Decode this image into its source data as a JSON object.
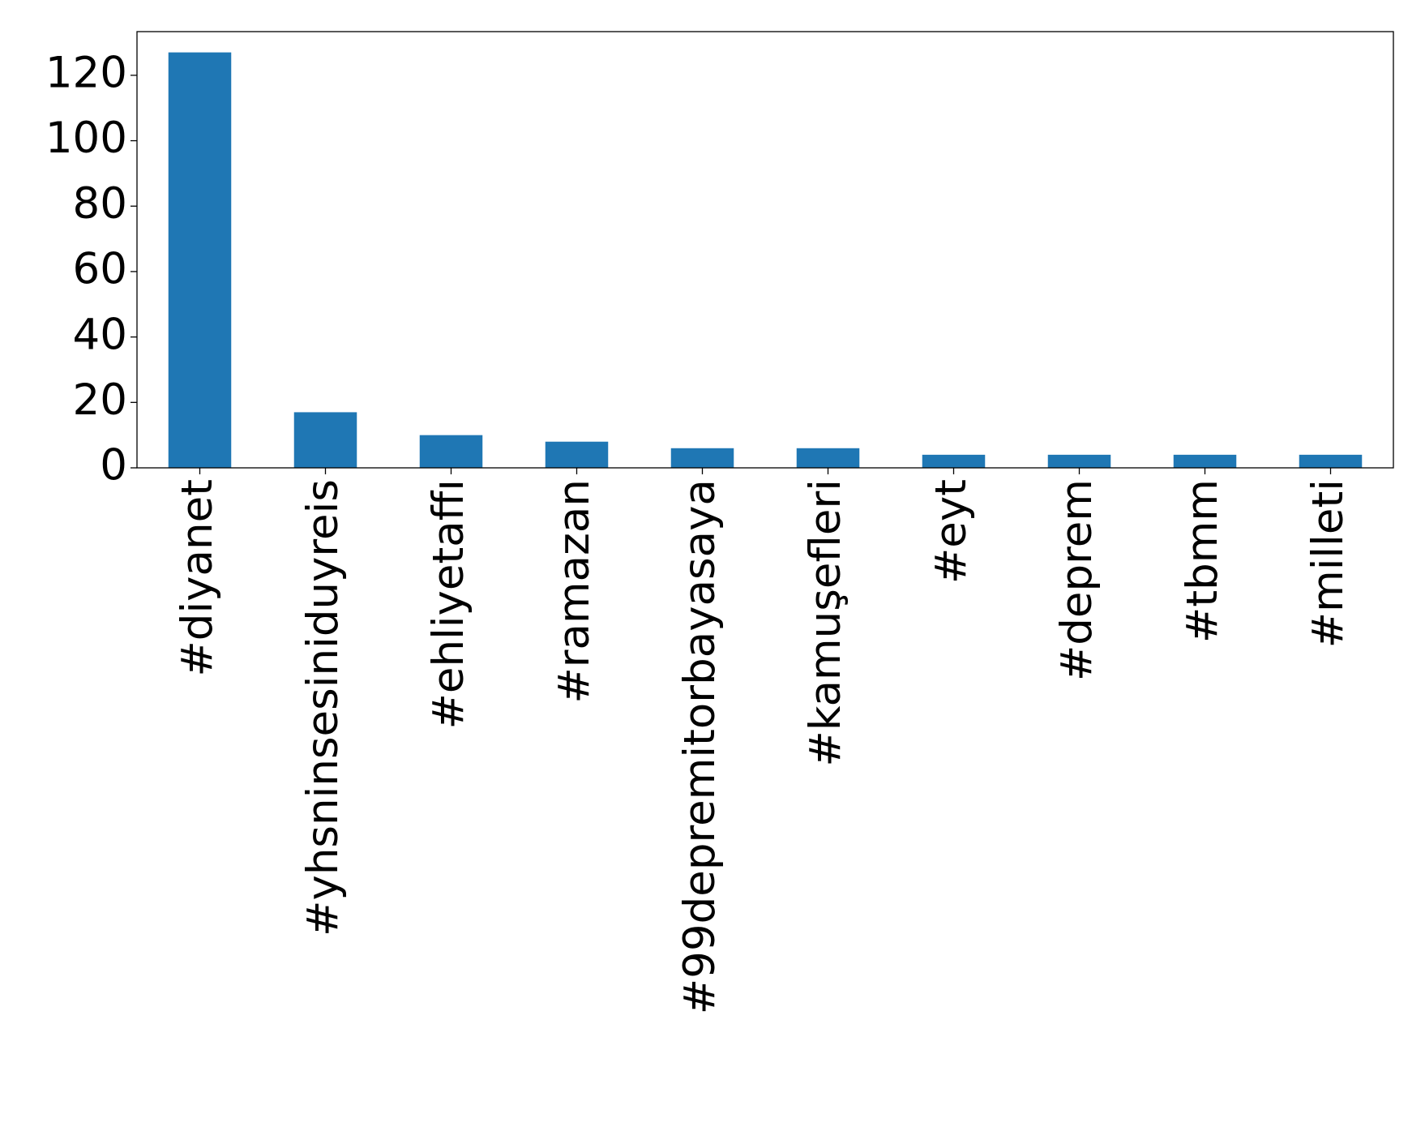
{
  "chart_data": {
    "type": "bar",
    "categories": [
      "#diyanet",
      "#yhsninsesiniduyreis",
      "#ehliyetaffı",
      "#ramazan",
      "#99depremitorbayasaya",
      "#kamuşefleri",
      "#eyt",
      "#deprem",
      "#tbmm",
      "#milleti"
    ],
    "values": [
      127,
      17,
      10,
      8,
      6,
      6,
      4,
      4,
      4,
      4
    ],
    "color": "#1f77b4",
    "ylim": [
      0,
      133.35
    ],
    "yticks": [
      0,
      20,
      40,
      60,
      80,
      100,
      120
    ],
    "grid": false
  }
}
